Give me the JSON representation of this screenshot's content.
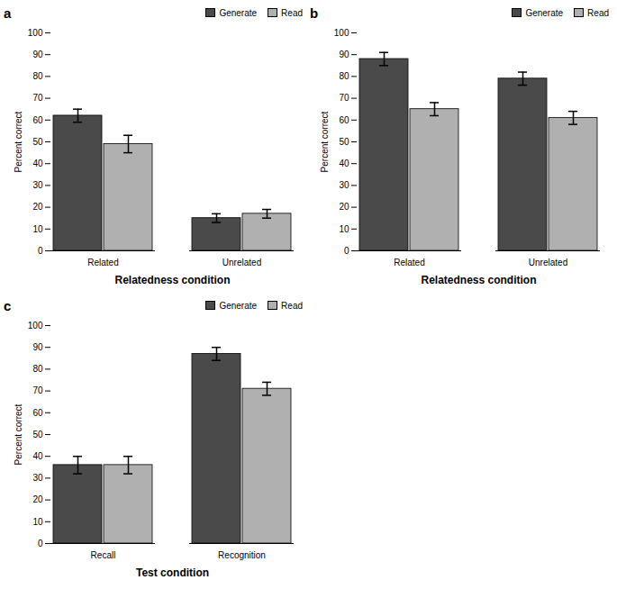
{
  "chart_data": [
    {
      "type": "bar",
      "title": "a",
      "xlabel": "Relatedness condition",
      "ylabel": "Percent correct",
      "categories": [
        "Related",
        "Unrelated"
      ],
      "series": [
        {
          "name": "Generate",
          "color": "#4a4a4a",
          "values": [
            62,
            15
          ],
          "errors": [
            3,
            2
          ]
        },
        {
          "name": "Read",
          "color": "#b0b0b0",
          "values": [
            49,
            17
          ],
          "errors": [
            4,
            2
          ]
        }
      ],
      "ylim": [
        0,
        100
      ],
      "yticks": [
        0,
        10,
        20,
        30,
        40,
        50,
        60,
        70,
        80,
        90,
        100
      ],
      "grid": false,
      "legend": "upper right"
    },
    {
      "type": "bar",
      "title": "b",
      "xlabel": "Relatedness condition",
      "ylabel": "Percent correct",
      "categories": [
        "Related",
        "Unrelated"
      ],
      "series": [
        {
          "name": "Generate",
          "color": "#4a4a4a",
          "values": [
            88,
            79
          ],
          "errors": [
            3,
            3
          ]
        },
        {
          "name": "Read",
          "color": "#b0b0b0",
          "values": [
            65,
            61
          ],
          "errors": [
            3,
            3
          ]
        }
      ],
      "ylim": [
        0,
        100
      ],
      "yticks": [
        0,
        10,
        20,
        30,
        40,
        50,
        60,
        70,
        80,
        90,
        100
      ],
      "grid": false,
      "legend": "upper right"
    },
    {
      "type": "bar",
      "title": "c",
      "xlabel": "Test condition",
      "ylabel": "Percent correct",
      "categories": [
        "Recall",
        "Recognition"
      ],
      "series": [
        {
          "name": "Generate",
          "color": "#4a4a4a",
          "values": [
            36,
            87
          ],
          "errors": [
            4,
            3
          ]
        },
        {
          "name": "Read",
          "color": "#b0b0b0",
          "values": [
            36,
            71
          ],
          "errors": [
            4,
            3
          ]
        }
      ],
      "ylim": [
        0,
        100
      ],
      "yticks": [
        0,
        10,
        20,
        30,
        40,
        50,
        60,
        70,
        80,
        90,
        100
      ],
      "grid": false,
      "legend": "upper right"
    }
  ]
}
